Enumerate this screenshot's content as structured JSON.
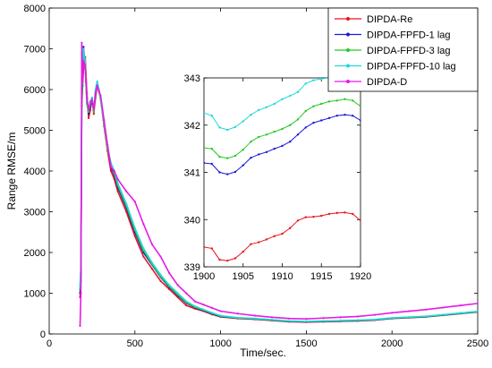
{
  "chart_data": [
    {
      "type": "line",
      "xlabel": "Time/sec.",
      "ylabel": "Range RMSE/m",
      "xlim": [
        0,
        2500
      ],
      "ylim": [
        0,
        8000
      ],
      "xticks": [
        "0",
        "500",
        "1000",
        "1500",
        "2000",
        "2500"
      ],
      "yticks": [
        "0",
        "1000",
        "2000",
        "3000",
        "4000",
        "5000",
        "6000",
        "7000",
        "8000"
      ],
      "legend_placement": "top-right",
      "series": [
        {
          "name": "DIPDA-Re",
          "color": "#e8141b",
          "x": [
            180,
            185,
            190,
            195,
            200,
            210,
            220,
            230,
            240,
            250,
            260,
            270,
            280,
            290,
            300,
            320,
            340,
            360,
            380,
            400,
            450,
            500,
            550,
            600,
            650,
            700,
            750,
            800,
            850,
            900,
            950,
            1000,
            1100,
            1200,
            1300,
            1400,
            1500,
            1600,
            1700,
            1800,
            1900,
            2000,
            2100,
            2200,
            2300,
            2400,
            2500
          ],
          "y": [
            900,
            1300,
            5600,
            6100,
            6500,
            6800,
            5900,
            5300,
            5500,
            5800,
            5400,
            5800,
            6100,
            6000,
            5800,
            5100,
            4500,
            4000,
            3800,
            3500,
            3000,
            2400,
            1900,
            1600,
            1300,
            1100,
            900,
            700,
            620,
            560,
            480,
            420,
            380,
            360,
            330,
            300,
            290,
            300,
            310,
            320,
            340,
            380,
            400,
            420,
            460,
            500,
            540
          ]
        },
        {
          "name": "DIPDA-FPFD-1 lag",
          "color": "#1a1ad6",
          "x": [
            180,
            185,
            190,
            195,
            200,
            210,
            220,
            230,
            240,
            250,
            260,
            270,
            280,
            290,
            300,
            320,
            340,
            360,
            380,
            400,
            450,
            500,
            550,
            600,
            650,
            700,
            750,
            800,
            850,
            900,
            950,
            1000,
            1100,
            1200,
            1300,
            1400,
            1500,
            1600,
            1700,
            1800,
            1900,
            2000,
            2100,
            2200,
            2300,
            2400,
            2500
          ],
          "y": [
            1000,
            1500,
            5800,
            6300,
            7050,
            6600,
            5700,
            5400,
            5600,
            5700,
            5500,
            5900,
            6150,
            6000,
            5800,
            5200,
            4600,
            4100,
            3900,
            3600,
            3100,
            2500,
            2000,
            1700,
            1400,
            1150,
            950,
            760,
            650,
            580,
            500,
            430,
            390,
            370,
            340,
            310,
            300,
            310,
            320,
            330,
            345,
            385,
            405,
            425,
            465,
            505,
            545
          ]
        },
        {
          "name": "DIPDA-FPFD-3 lag",
          "color": "#24c924",
          "x": [
            180,
            185,
            190,
            195,
            200,
            210,
            220,
            230,
            240,
            250,
            260,
            270,
            280,
            290,
            300,
            320,
            340,
            360,
            380,
            400,
            450,
            500,
            550,
            600,
            650,
            700,
            750,
            800,
            850,
            900,
            950,
            1000,
            1100,
            1200,
            1300,
            1400,
            1500,
            1600,
            1700,
            1800,
            1900,
            2000,
            2100,
            2200,
            2300,
            2400,
            2500
          ],
          "y": [
            1100,
            1600,
            5900,
            6400,
            6900,
            6500,
            5650,
            5450,
            5650,
            5750,
            5450,
            5950,
            6100,
            5950,
            5750,
            5150,
            4550,
            4150,
            3950,
            3650,
            3150,
            2550,
            2050,
            1720,
            1420,
            1170,
            970,
            780,
            660,
            590,
            510,
            440,
            395,
            375,
            345,
            315,
            305,
            315,
            325,
            335,
            350,
            390,
            410,
            430,
            470,
            510,
            550
          ]
        },
        {
          "name": "DIPDA-FPFD-10 lag",
          "color": "#22d8d8",
          "x": [
            180,
            185,
            190,
            195,
            200,
            210,
            220,
            230,
            240,
            250,
            260,
            270,
            280,
            290,
            300,
            320,
            340,
            360,
            380,
            400,
            450,
            500,
            550,
            600,
            650,
            700,
            750,
            800,
            850,
            900,
            950,
            1000,
            1100,
            1200,
            1300,
            1400,
            1500,
            1600,
            1700,
            1800,
            1900,
            2000,
            2100,
            2200,
            2300,
            2400,
            2500
          ],
          "y": [
            1200,
            1700,
            6000,
            6500,
            7000,
            6700,
            5750,
            5500,
            5700,
            5800,
            5500,
            6000,
            6200,
            6000,
            5800,
            5200,
            4600,
            4200,
            4000,
            3700,
            3200,
            2600,
            2100,
            1750,
            1450,
            1200,
            1000,
            800,
            680,
            600,
            520,
            450,
            400,
            380,
            350,
            320,
            310,
            320,
            330,
            340,
            355,
            395,
            415,
            435,
            475,
            515,
            555
          ]
        },
        {
          "name": "DIPDA-D",
          "color": "#e619e6",
          "x": [
            180,
            185,
            190,
            195,
            200,
            210,
            220,
            230,
            240,
            250,
            260,
            270,
            280,
            290,
            300,
            320,
            340,
            360,
            380,
            400,
            450,
            500,
            550,
            600,
            650,
            700,
            750,
            800,
            850,
            900,
            950,
            1000,
            1100,
            1200,
            1300,
            1400,
            1500,
            1600,
            1700,
            1800,
            1900,
            2000,
            2100,
            2200,
            2300,
            2400,
            2500
          ],
          "y": [
            200,
            1000,
            7150,
            6200,
            6700,
            6600,
            5800,
            5500,
            5700,
            5750,
            5500,
            5900,
            6100,
            5950,
            5850,
            5250,
            4650,
            4100,
            4000,
            3800,
            3500,
            3250,
            2700,
            2200,
            1900,
            1500,
            1200,
            1000,
            800,
            720,
            640,
            560,
            500,
            450,
            410,
            380,
            370,
            390,
            410,
            430,
            470,
            520,
            560,
            600,
            650,
            700,
            750
          ]
        }
      ]
    },
    {
      "type": "line",
      "xlim": [
        1900,
        1920
      ],
      "ylim": [
        339,
        343
      ],
      "xticks": [
        "1900",
        "1905",
        "1910",
        "1915",
        "1920"
      ],
      "yticks": [
        "339",
        "340",
        "341",
        "342",
        "343"
      ],
      "series": [
        {
          "color": "#e8141b",
          "x": [
            1900,
            1901,
            1902,
            1903,
            1904,
            1905,
            1906,
            1907,
            1908,
            1909,
            1910,
            1911,
            1912,
            1913,
            1914,
            1915,
            1916,
            1917,
            1918,
            1919,
            1920
          ],
          "y": [
            339.42,
            339.39,
            339.15,
            339.13,
            339.18,
            339.32,
            339.48,
            339.52,
            339.58,
            339.65,
            339.7,
            339.82,
            339.98,
            340.05,
            340.06,
            340.08,
            340.12,
            340.14,
            340.15,
            340.12,
            339.98
          ]
        },
        {
          "color": "#1a1ad6",
          "x": [
            1900,
            1901,
            1902,
            1903,
            1904,
            1905,
            1906,
            1907,
            1908,
            1909,
            1910,
            1911,
            1912,
            1913,
            1914,
            1915,
            1916,
            1917,
            1918,
            1919,
            1920
          ],
          "y": [
            341.2,
            341.18,
            341.0,
            340.96,
            341.01,
            341.15,
            341.31,
            341.38,
            341.43,
            341.5,
            341.56,
            341.65,
            341.8,
            341.95,
            342.05,
            342.1,
            342.15,
            342.2,
            342.22,
            342.2,
            342.1
          ]
        },
        {
          "color": "#24c924",
          "x": [
            1900,
            1901,
            1902,
            1903,
            1904,
            1905,
            1906,
            1907,
            1908,
            1909,
            1910,
            1911,
            1912,
            1913,
            1914,
            1915,
            1916,
            1917,
            1918,
            1919,
            1920
          ],
          "y": [
            341.52,
            341.5,
            341.33,
            341.3,
            341.35,
            341.48,
            341.65,
            341.75,
            341.8,
            341.86,
            341.92,
            342.0,
            342.12,
            342.3,
            342.4,
            342.45,
            342.5,
            342.52,
            342.55,
            342.52,
            342.4
          ]
        },
        {
          "color": "#22d8d8",
          "x": [
            1900,
            1901,
            1902,
            1903,
            1904,
            1905,
            1906,
            1907,
            1908,
            1909,
            1910,
            1911,
            1912,
            1913,
            1914,
            1915,
            1916,
            1917,
            1918,
            1919,
            1920
          ],
          "y": [
            342.26,
            342.2,
            341.95,
            341.9,
            341.96,
            342.08,
            342.22,
            342.32,
            342.38,
            342.45,
            342.55,
            342.62,
            342.7,
            342.88,
            342.95,
            342.98,
            343.0,
            343.02,
            343.03,
            343.0,
            342.9
          ]
        }
      ]
    }
  ]
}
